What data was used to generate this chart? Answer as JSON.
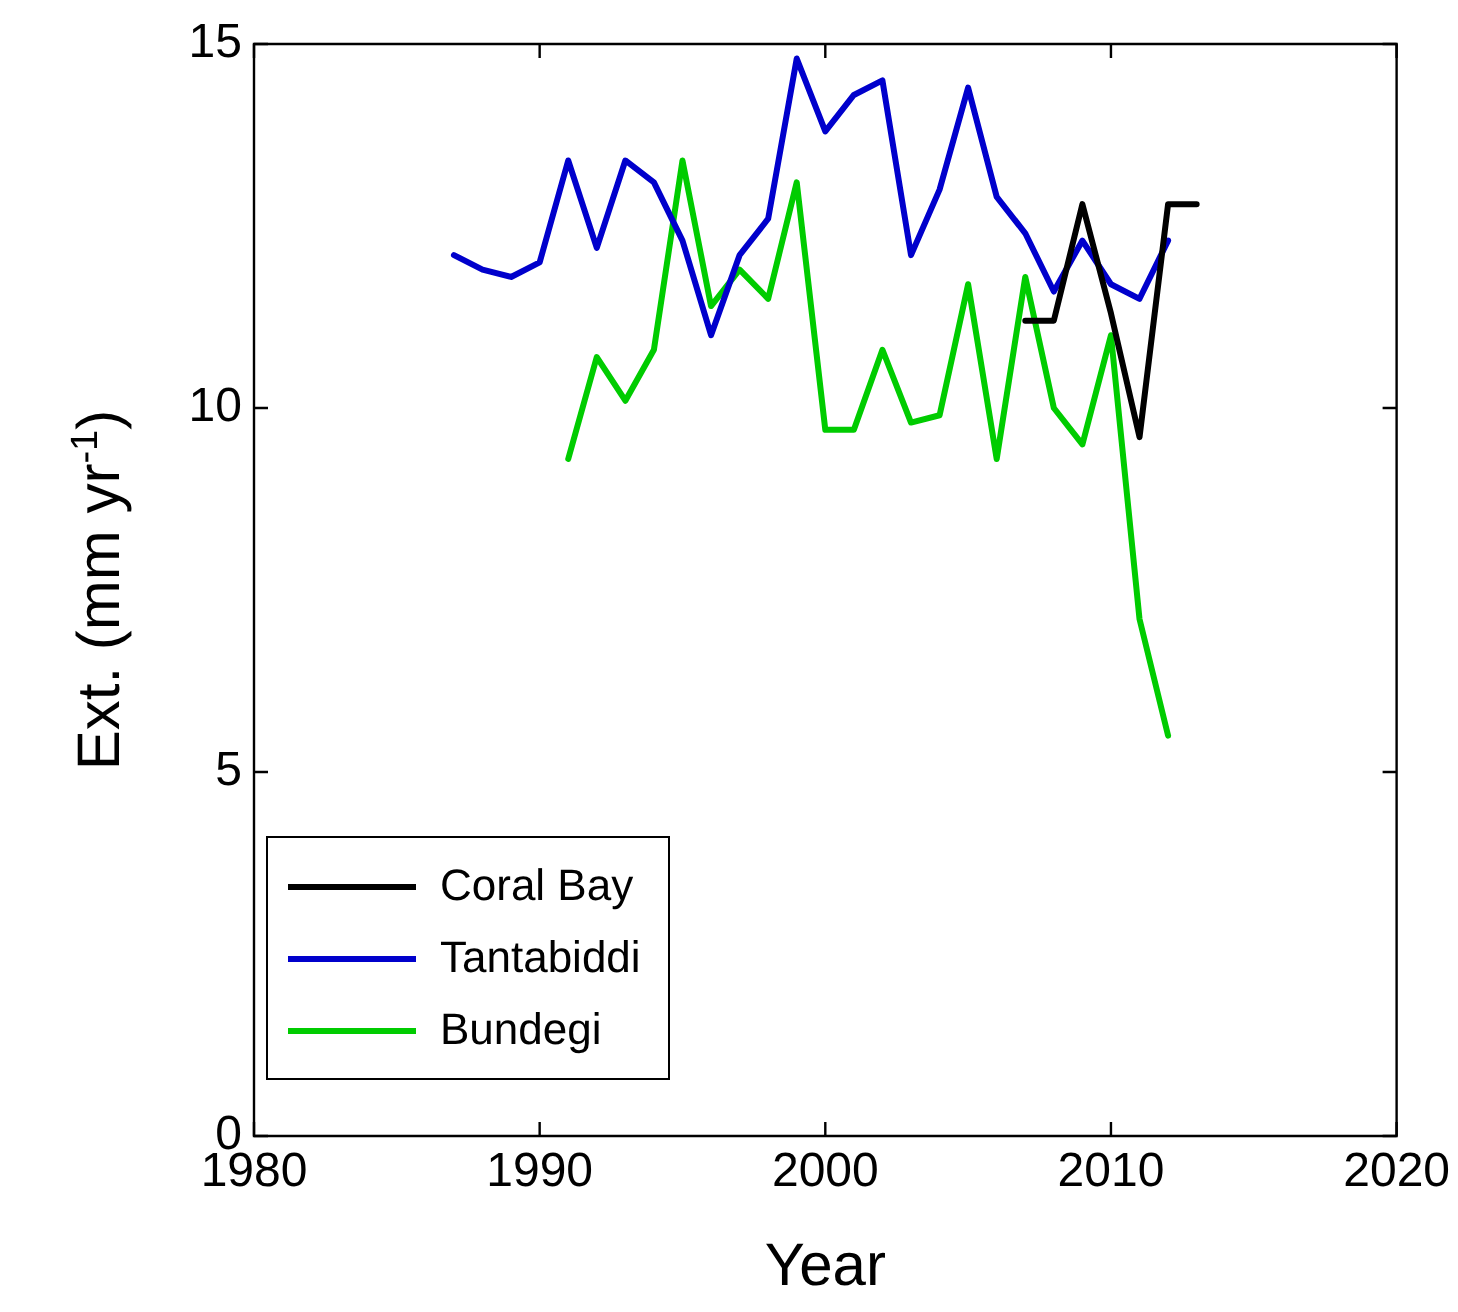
{
  "chart_data": {
    "type": "line",
    "xlabel": "Year",
    "ylabel": "Ext. (mm yr$^{-1}$)",
    "xlim": [
      1980,
      2020
    ],
    "xticks": [
      1980,
      1990,
      2000,
      2010,
      2020
    ],
    "ylim": [
      0,
      15
    ],
    "yticks": [
      0,
      5,
      10,
      15
    ],
    "grid": false,
    "legend": "bottom left",
    "marker": "none",
    "line_style": "solid",
    "series": [
      {
        "name": "Coral Bay",
        "color": "#000000",
        "x": [
          2007,
          2008,
          2009,
          2010,
          2011,
          2012,
          2013
        ],
        "values": [
          11.2,
          11.2,
          12.8,
          11.3,
          9.6,
          12.8,
          12.8
        ]
      },
      {
        "name": "Tantabiddi",
        "color": "#0000cc",
        "x": [
          1987,
          1988,
          1989,
          1990,
          1991,
          1992,
          1993,
          1994,
          1995,
          1996,
          1997,
          1998,
          1999,
          2000,
          2001,
          2002,
          2003,
          2004,
          2005,
          2006,
          2007,
          2008,
          2009,
          2010,
          2011,
          2012
        ],
        "values": [
          12.1,
          11.9,
          11.8,
          12.0,
          13.4,
          12.2,
          13.4,
          13.1,
          12.3,
          11.0,
          12.1,
          12.6,
          14.8,
          13.8,
          14.3,
          14.5,
          12.1,
          13.0,
          14.4,
          12.9,
          12.4,
          11.6,
          12.3,
          11.7,
          11.5,
          12.3
        ]
      },
      {
        "name": "Bundegi",
        "color": "#00cc00",
        "x": [
          1991,
          1992,
          1993,
          1994,
          1995,
          1996,
          1997,
          1998,
          1999,
          2000,
          2001,
          2002,
          2003,
          2004,
          2005,
          2006,
          2007,
          2008,
          2009,
          2010,
          2011,
          2012
        ],
        "values": [
          9.3,
          10.7,
          10.1,
          10.8,
          13.4,
          11.4,
          11.9,
          11.5,
          13.1,
          9.7,
          9.7,
          10.8,
          9.8,
          9.9,
          11.7,
          9.3,
          11.8,
          10.0,
          9.5,
          11.0,
          7.1,
          5.5
        ]
      }
    ]
  }
}
